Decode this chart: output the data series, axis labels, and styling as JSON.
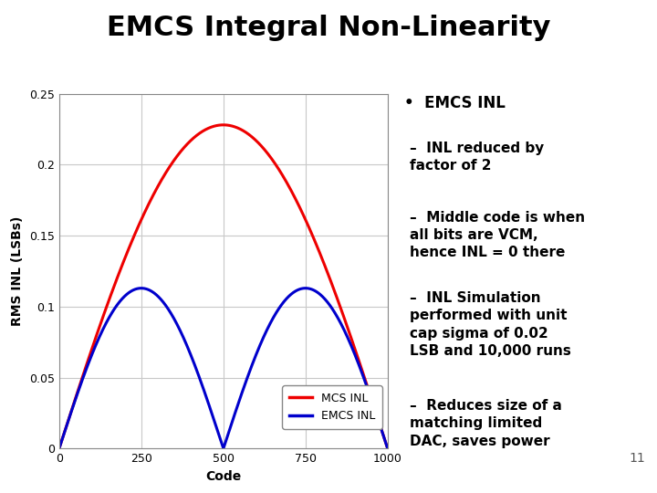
{
  "title": "EMCS Integral Non-Linearity",
  "title_fontsize": 22,
  "title_fontweight": "bold",
  "title_color": "#000000",
  "header_bar_color": "#aaaaaa",
  "background_color": "#ffffff",
  "plot_bg_color": "#ffffff",
  "grid_color": "#c8c8c8",
  "xlabel": "Code",
  "ylabel": "RMS INL (LSBs)",
  "xlabel_fontsize": 10,
  "ylabel_fontsize": 10,
  "xlabel_fontweight": "bold",
  "ylabel_fontweight": "bold",
  "xlim": [
    0,
    1000
  ],
  "ylim": [
    0,
    0.25
  ],
  "xticks": [
    0,
    250,
    500,
    750,
    1000
  ],
  "yticks": [
    0,
    0.05,
    0.1,
    0.15,
    0.2,
    0.25
  ],
  "mcs_color": "#ee0000",
  "emcs_color": "#0000cc",
  "mcs_label": "MCS INL",
  "emcs_label": "EMCS INL",
  "line_width": 2.2,
  "N": 1000,
  "bullet_title": "EMCS INL",
  "bullet_points": [
    "INL reduced by\nfactor of 2",
    "Middle code is when\nall bits are VCM,\nhence INL = 0 there",
    "INL Simulation\nperformed with unit\ncap sigma of 0.02\nLSB and 10,000 runs",
    "Reduces size of a\nmatching limited\nDAC, saves power"
  ],
  "slide_number": "11",
  "tick_fontsize": 9,
  "legend_fontsize": 9,
  "text_fontsize": 11
}
